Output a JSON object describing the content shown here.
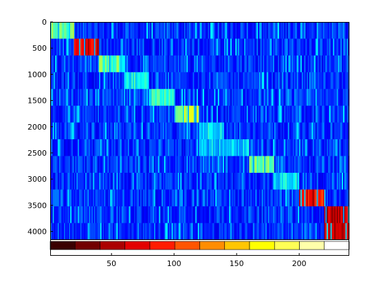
{
  "chart_data": {
    "type": "heatmap",
    "title": "",
    "xlabel": "",
    "ylabel": "",
    "colormap": "jet",
    "x_range": [
      1,
      240
    ],
    "y_range": [
      0,
      4150
    ],
    "y_reversed": true,
    "x_ticks": [
      {
        "value": 50,
        "label": "50"
      },
      {
        "value": 100,
        "label": "100"
      },
      {
        "value": 150,
        "label": "150"
      },
      {
        "value": 200,
        "label": "200"
      }
    ],
    "y_ticks": [
      {
        "value": 0,
        "label": "0"
      },
      {
        "value": 500,
        "label": "500"
      },
      {
        "value": 1000,
        "label": "1000"
      },
      {
        "value": 1500,
        "label": "1500"
      },
      {
        "value": 2000,
        "label": "2000"
      },
      {
        "value": 2500,
        "label": "2500"
      },
      {
        "value": 3000,
        "label": "3000"
      },
      {
        "value": 3500,
        "label": "3500"
      },
      {
        "value": 4000,
        "label": "4000"
      }
    ],
    "band_rows": [
      {
        "y_start": 0,
        "y_end": 320
      },
      {
        "y_start": 320,
        "y_end": 640
      },
      {
        "y_start": 640,
        "y_end": 960
      },
      {
        "y_start": 960,
        "y_end": 1280
      },
      {
        "y_start": 1280,
        "y_end": 1600
      },
      {
        "y_start": 1600,
        "y_end": 1920
      },
      {
        "y_start": 1920,
        "y_end": 2240
      },
      {
        "y_start": 2240,
        "y_end": 2560
      },
      {
        "y_start": 2560,
        "y_end": 2880
      },
      {
        "y_start": 2880,
        "y_end": 3200
      },
      {
        "y_start": 3200,
        "y_end": 3520
      },
      {
        "y_start": 3520,
        "y_end": 3840
      },
      {
        "y_start": 3840,
        "y_end": 4150
      }
    ],
    "hot_blocks": [
      {
        "row": 0,
        "x_start": 1,
        "x_end": 20,
        "level": 0.5
      },
      {
        "row": 1,
        "x_start": 20,
        "x_end": 40,
        "level": 0.9
      },
      {
        "row": 2,
        "x_start": 40,
        "x_end": 60,
        "level": 0.48
      },
      {
        "row": 3,
        "x_start": 60,
        "x_end": 80,
        "level": 0.4
      },
      {
        "row": 4,
        "x_start": 80,
        "x_end": 100,
        "level": 0.4
      },
      {
        "row": 5,
        "x_start": 100,
        "x_end": 120,
        "level": 0.55
      },
      {
        "row": 6,
        "x_start": 120,
        "x_end": 140,
        "level": 0.35
      },
      {
        "row": 7,
        "x_start": 120,
        "x_end": 160,
        "level": 0.33
      },
      {
        "row": 8,
        "x_start": 160,
        "x_end": 180,
        "level": 0.48
      },
      {
        "row": 9,
        "x_start": 180,
        "x_end": 200,
        "level": 0.36
      },
      {
        "row": 10,
        "x_start": 200,
        "x_end": 220,
        "level": 0.88
      },
      {
        "row": 11,
        "x_start": 220,
        "x_end": 240,
        "level": 0.95
      },
      {
        "row": 12,
        "x_start": 220,
        "x_end": 240,
        "level": 0.92
      }
    ],
    "colorbar": {
      "orientation": "horizontal",
      "colormap": "hot",
      "segments": 12,
      "colors": [
        "#3a0000",
        "#720000",
        "#ab0000",
        "#e30000",
        "#ff1c00",
        "#ff5500",
        "#ff8d00",
        "#ffc600",
        "#ffff00",
        "#ffff55",
        "#ffffaa",
        "#ffffff"
      ]
    }
  }
}
